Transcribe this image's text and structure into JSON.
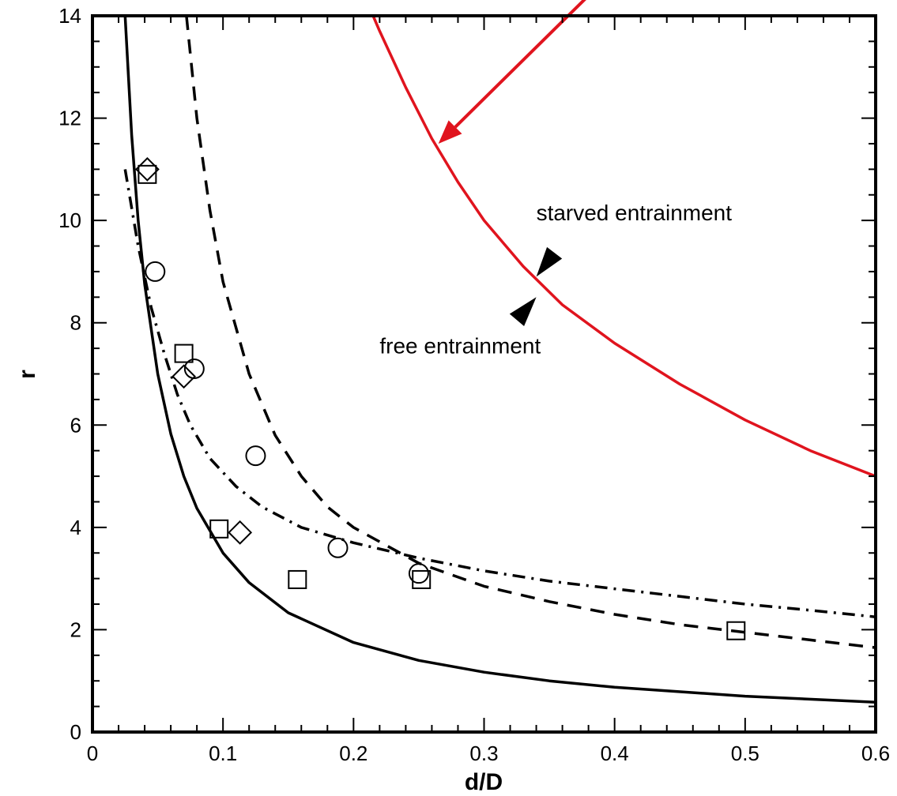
{
  "chart_data": {
    "type": "scatter",
    "title": "",
    "xlabel": "d/D",
    "ylabel": "r",
    "xlim": [
      0,
      0.6
    ],
    "ylim": [
      0,
      14
    ],
    "x_ticks": [
      "0",
      "0.1",
      "0.2",
      "0.3",
      "0.4",
      "0.5",
      "0.6"
    ],
    "y_ticks": [
      "0",
      "2",
      "4",
      "6",
      "8",
      "10",
      "12",
      "14"
    ],
    "grid": false,
    "legend": "none",
    "series": [
      {
        "style": "solid",
        "color": "#000000",
        "kind": "line",
        "points": [
          [
            0.025,
            14.0
          ],
          [
            0.03,
            11.67
          ],
          [
            0.035,
            10.0
          ],
          [
            0.04,
            8.75
          ],
          [
            0.05,
            7.0
          ],
          [
            0.06,
            5.83
          ],
          [
            0.07,
            5.0
          ],
          [
            0.08,
            4.375
          ],
          [
            0.1,
            3.5
          ],
          [
            0.12,
            2.92
          ],
          [
            0.15,
            2.33
          ],
          [
            0.2,
            1.75
          ],
          [
            0.25,
            1.4
          ],
          [
            0.3,
            1.17
          ],
          [
            0.35,
            1.0
          ],
          [
            0.4,
            0.875
          ],
          [
            0.5,
            0.7
          ],
          [
            0.6,
            0.583
          ]
        ]
      },
      {
        "style": "dashed",
        "color": "#000000",
        "kind": "line",
        "points": [
          [
            0.072,
            14.0
          ],
          [
            0.08,
            12.0
          ],
          [
            0.09,
            10.2
          ],
          [
            0.1,
            8.8
          ],
          [
            0.12,
            7.0
          ],
          [
            0.14,
            5.8
          ],
          [
            0.16,
            5.0
          ],
          [
            0.18,
            4.4
          ],
          [
            0.2,
            4.0
          ],
          [
            0.25,
            3.3
          ],
          [
            0.3,
            2.85
          ],
          [
            0.35,
            2.55
          ],
          [
            0.4,
            2.3
          ],
          [
            0.45,
            2.1
          ],
          [
            0.5,
            1.95
          ],
          [
            0.55,
            1.8
          ],
          [
            0.6,
            1.65
          ]
        ]
      },
      {
        "style": "dash-dot",
        "color": "#000000",
        "kind": "line",
        "points": [
          [
            0.025,
            11.0
          ],
          [
            0.035,
            9.5
          ],
          [
            0.045,
            8.3
          ],
          [
            0.055,
            7.4
          ],
          [
            0.065,
            6.6
          ],
          [
            0.075,
            6.0
          ],
          [
            0.09,
            5.35
          ],
          [
            0.11,
            4.8
          ],
          [
            0.13,
            4.4
          ],
          [
            0.16,
            4.0
          ],
          [
            0.2,
            3.7
          ],
          [
            0.25,
            3.4
          ],
          [
            0.3,
            3.15
          ],
          [
            0.35,
            2.95
          ],
          [
            0.4,
            2.8
          ],
          [
            0.45,
            2.65
          ],
          [
            0.5,
            2.5
          ],
          [
            0.55,
            2.38
          ],
          [
            0.6,
            2.25
          ]
        ]
      },
      {
        "style": "solid",
        "color": "#e0141e",
        "kind": "line",
        "points": [
          [
            0.215,
            14.0
          ],
          [
            0.22,
            13.7
          ],
          [
            0.24,
            12.6
          ],
          [
            0.26,
            11.6
          ],
          [
            0.28,
            10.75
          ],
          [
            0.3,
            10.0
          ],
          [
            0.33,
            9.1
          ],
          [
            0.36,
            8.35
          ],
          [
            0.4,
            7.6
          ],
          [
            0.45,
            6.8
          ],
          [
            0.5,
            6.1
          ],
          [
            0.55,
            5.5
          ],
          [
            0.6,
            5.0
          ]
        ]
      },
      {
        "kind": "scatter",
        "marker": "circle",
        "points": [
          [
            0.048,
            9.0
          ],
          [
            0.078,
            7.1
          ],
          [
            0.125,
            5.4
          ],
          [
            0.188,
            3.6
          ],
          [
            0.25,
            3.1
          ]
        ]
      },
      {
        "kind": "scatter",
        "marker": "square",
        "points": [
          [
            0.042,
            10.9
          ],
          [
            0.07,
            7.4
          ],
          [
            0.097,
            3.97
          ],
          [
            0.157,
            2.98
          ],
          [
            0.252,
            2.98
          ],
          [
            0.493,
            1.98
          ]
        ]
      },
      {
        "kind": "scatter",
        "marker": "diamond",
        "points": [
          [
            0.042,
            11.0
          ],
          [
            0.07,
            6.95
          ],
          [
            0.113,
            3.9
          ]
        ]
      }
    ],
    "annotations": [
      {
        "text": "starved entrainment",
        "x": 0.34,
        "y": 10.0
      },
      {
        "text": "free entrainment",
        "x": 0.22,
        "y": 7.4
      }
    ],
    "arrows": [
      {
        "color": "#e0141e",
        "from": [
          0.42,
          15.4
        ],
        "to": [
          0.265,
          11.5
        ]
      },
      {
        "color": "#000000",
        "from": [
          0.355,
          9.4
        ],
        "to": [
          0.34,
          8.9
        ]
      },
      {
        "color": "#000000",
        "from": [
          0.33,
          8.2
        ],
        "to": [
          0.34,
          8.5
        ]
      }
    ]
  }
}
